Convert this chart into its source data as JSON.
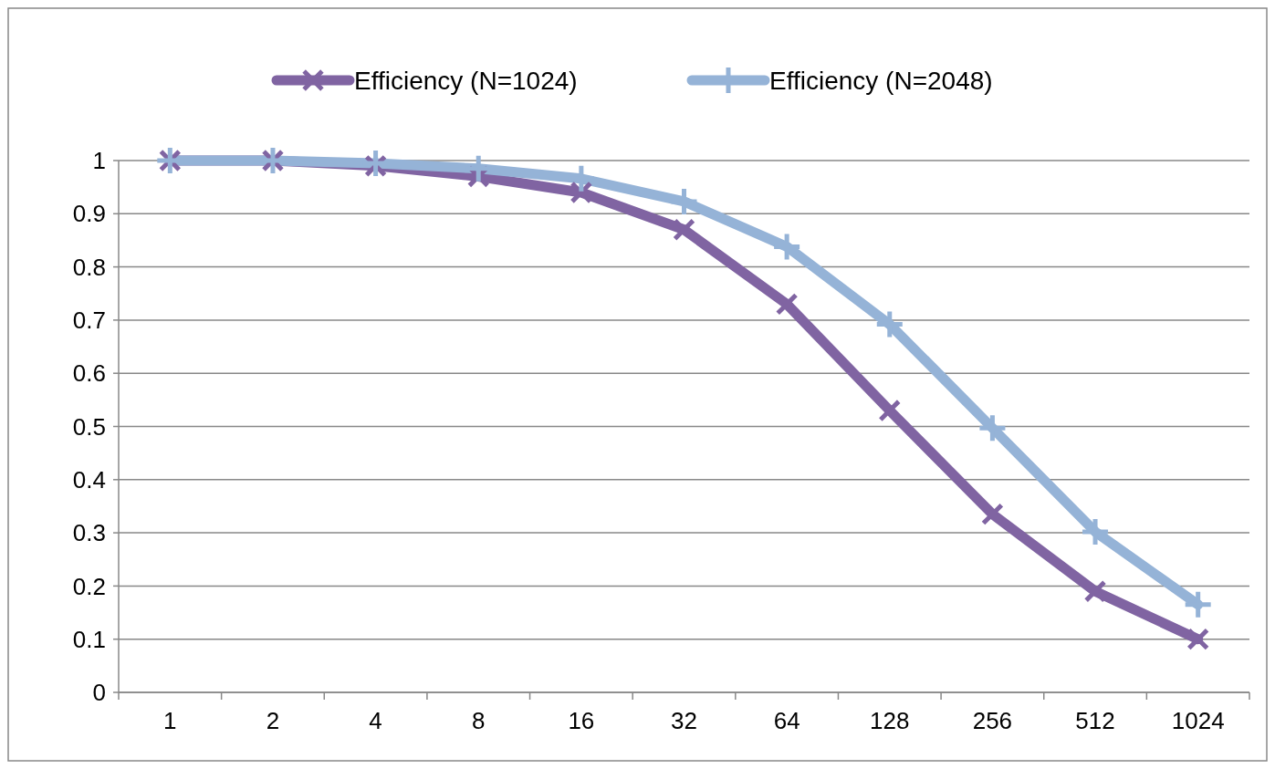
{
  "chart_data": {
    "type": "line",
    "categories": [
      "1",
      "2",
      "4",
      "8",
      "16",
      "32",
      "64",
      "128",
      "256",
      "512",
      "1024"
    ],
    "series": [
      {
        "name": "Efficiency (N=1024)",
        "color": "#8064a2",
        "marker": "cross",
        "values": [
          1,
          1,
          0.99,
          0.97,
          0.94,
          0.87,
          0.73,
          0.53,
          0.335,
          0.19,
          0.1
        ]
      },
      {
        "name": "Efficiency (N=2048)",
        "color": "#95b3d7",
        "marker": "cross",
        "values": [
          1,
          1,
          0.995,
          0.985,
          0.966,
          0.923,
          0.838,
          0.692,
          0.497,
          0.302,
          0.165
        ]
      }
    ],
    "ylim": [
      0,
      1
    ],
    "yticks": [
      0,
      0.1,
      0.2,
      0.3,
      0.4,
      0.5,
      0.6,
      0.7,
      0.8,
      0.9,
      1
    ],
    "grid": "y",
    "legend": "top"
  }
}
